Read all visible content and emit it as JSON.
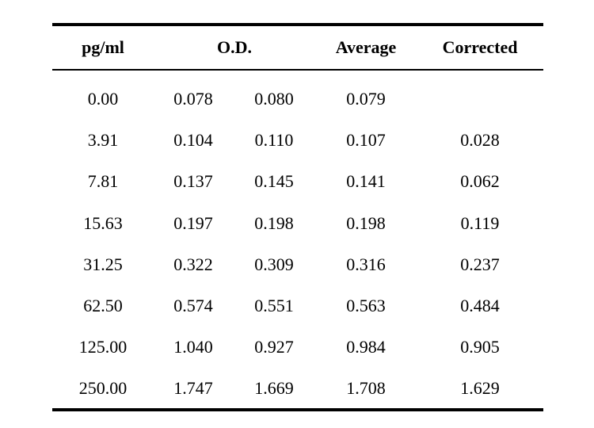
{
  "table": {
    "headers": {
      "concentration": "pg/ml",
      "od": "O.D.",
      "average": "Average",
      "corrected": "Corrected"
    },
    "rows": [
      {
        "conc": "0.00",
        "od1": "0.078",
        "od2": "0.080",
        "avg": "0.079",
        "corr": ""
      },
      {
        "conc": "3.91",
        "od1": "0.104",
        "od2": "0.110",
        "avg": "0.107",
        "corr": "0.028"
      },
      {
        "conc": "7.81",
        "od1": "0.137",
        "od2": "0.145",
        "avg": "0.141",
        "corr": "0.062"
      },
      {
        "conc": "15.63",
        "od1": "0.197",
        "od2": "0.198",
        "avg": "0.198",
        "corr": "0.119"
      },
      {
        "conc": "31.25",
        "od1": "0.322",
        "od2": "0.309",
        "avg": "0.316",
        "corr": "0.237"
      },
      {
        "conc": "62.50",
        "od1": "0.574",
        "od2": "0.551",
        "avg": "0.563",
        "corr": "0.484"
      },
      {
        "conc": "125.00",
        "od1": "1.040",
        "od2": "0.927",
        "avg": "0.984",
        "corr": "0.905"
      },
      {
        "conc": "250.00",
        "od1": "1.747",
        "od2": "1.669",
        "avg": "1.708",
        "corr": "1.629"
      }
    ]
  }
}
